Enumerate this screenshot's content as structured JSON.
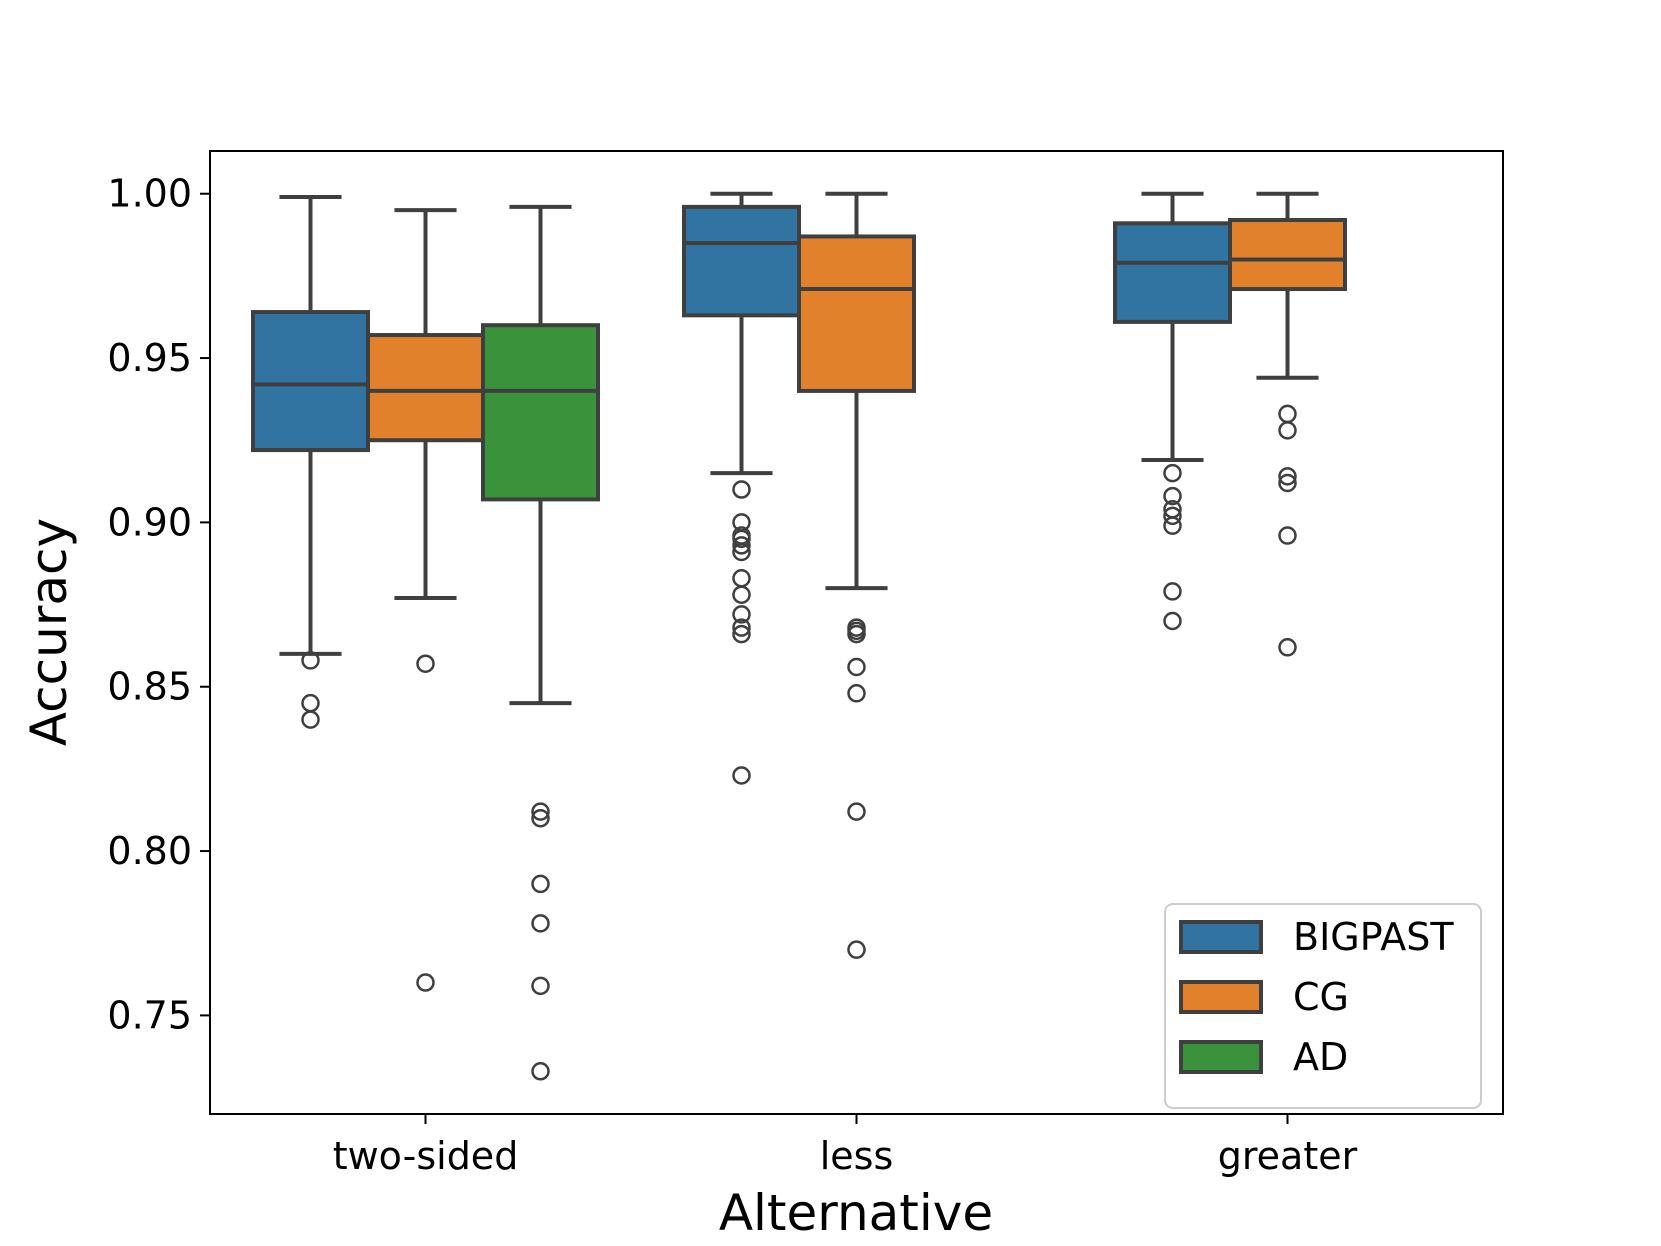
{
  "chart_data": {
    "type": "box",
    "title": "",
    "xlabel": "Alternative",
    "ylabel": "Accuracy",
    "ylim": [
      0.72,
      1.013
    ],
    "yticks": [
      0.75,
      0.8,
      0.85,
      0.9,
      0.95,
      1.0
    ],
    "ytick_labels": [
      "0.75",
      "0.80",
      "0.85",
      "0.90",
      "0.95",
      "1.00"
    ],
    "categories": [
      "two-sided",
      "less",
      "greater"
    ],
    "legend_position": "bottom-right",
    "series": [
      {
        "name": "BIGPAST",
        "color": "#3274a1",
        "boxes": [
          {
            "category": "two-sided",
            "whisker_low": 0.86,
            "q1": 0.922,
            "median": 0.942,
            "q3": 0.964,
            "whisker_high": 0.999,
            "outliers": [
              0.858,
              0.845,
              0.84
            ]
          },
          {
            "category": "less",
            "whisker_low": 0.915,
            "q1": 0.963,
            "median": 0.985,
            "q3": 0.996,
            "whisker_high": 1.0,
            "outliers": [
              0.91,
              0.9,
              0.896,
              0.895,
              0.893,
              0.891,
              0.883,
              0.878,
              0.872,
              0.868,
              0.866,
              0.823
            ]
          },
          {
            "category": "greater",
            "whisker_low": 0.919,
            "q1": 0.961,
            "median": 0.979,
            "q3": 0.991,
            "whisker_high": 1.0,
            "outliers": [
              0.915,
              0.908,
              0.904,
              0.902,
              0.899,
              0.879,
              0.87
            ]
          }
        ]
      },
      {
        "name": "CG",
        "color": "#e1812c",
        "boxes": [
          {
            "category": "two-sided",
            "whisker_low": 0.877,
            "q1": 0.925,
            "median": 0.94,
            "q3": 0.957,
            "whisker_high": 0.995,
            "outliers": [
              0.857,
              0.76
            ]
          },
          {
            "category": "less",
            "whisker_low": 0.88,
            "q1": 0.94,
            "median": 0.971,
            "q3": 0.987,
            "whisker_high": 1.0,
            "outliers": [
              0.868,
              0.867,
              0.866,
              0.856,
              0.848,
              0.812,
              0.77
            ]
          },
          {
            "category": "greater",
            "whisker_low": 0.944,
            "q1": 0.971,
            "median": 0.98,
            "q3": 0.992,
            "whisker_high": 1.0,
            "outliers": [
              0.933,
              0.928,
              0.914,
              0.912,
              0.896,
              0.862
            ]
          }
        ]
      },
      {
        "name": "AD",
        "color": "#3a923a",
        "boxes": [
          {
            "category": "two-sided",
            "whisker_low": 0.845,
            "q1": 0.907,
            "median": 0.94,
            "q3": 0.96,
            "whisker_high": 0.996,
            "outliers": [
              0.812,
              0.81,
              0.79,
              0.778,
              0.759,
              0.733
            ]
          }
        ]
      }
    ]
  }
}
